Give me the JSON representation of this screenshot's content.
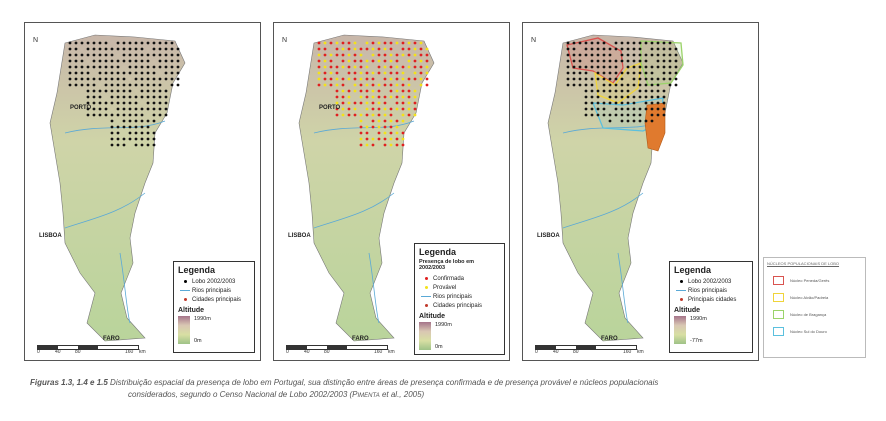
{
  "maps": [
    {
      "north": "N",
      "cities": {
        "porto": "PORTO",
        "lisboa": "LISBOA",
        "faro": "FARO"
      },
      "legend": {
        "title": "Legenda",
        "subtitle": "",
        "items": [
          {
            "label": "Lobo 2002/2003",
            "color": "#000000",
            "kind": "dot"
          },
          {
            "label": "Rios principais",
            "color": "#5aa9d6",
            "kind": "line"
          },
          {
            "label": "Cidades principais",
            "color": "#c0392b",
            "kind": "dot"
          }
        ],
        "altitude_title": "Altitude",
        "alt_max": "1990m",
        "alt_min": "0m"
      },
      "scale": {
        "t0": "0",
        "t1": "40",
        "t2": "80",
        "t3": "160",
        "unit": "km"
      }
    },
    {
      "north": "N",
      "cities": {
        "porto": "PORTO",
        "lisboa": "LISBOA",
        "faro": "FARO"
      },
      "legend": {
        "title": "Legenda",
        "subtitle": "Presença de lobo em 2002/2003",
        "items": [
          {
            "label": "Confirmada",
            "color": "#e02020",
            "kind": "dot"
          },
          {
            "label": "Provável",
            "color": "#f3e21a",
            "kind": "dot"
          },
          {
            "label": "Rios principais",
            "color": "#5aa9d6",
            "kind": "line"
          },
          {
            "label": "Cidades principais",
            "color": "#c0392b",
            "kind": "dot"
          }
        ],
        "altitude_title": "Altitude",
        "alt_max": "1990m",
        "alt_min": "0m"
      },
      "scale": {
        "t0": "0",
        "t1": "40",
        "t2": "80",
        "t3": "160",
        "unit": "km"
      }
    },
    {
      "north": "N",
      "cities": {
        "porto": "",
        "lisboa": "LISBOA",
        "faro": "FARO"
      },
      "legend": {
        "title": "Legenda",
        "subtitle": "",
        "items": [
          {
            "label": "Lobo 2002/2003",
            "color": "#000000",
            "kind": "dot"
          },
          {
            "label": "Rios principais",
            "color": "#5aa9d6",
            "kind": "line"
          },
          {
            "label": "Principais cidades",
            "color": "#c0392b",
            "kind": "dot"
          }
        ],
        "altitude_title": "Altitude",
        "alt_max": "1990m",
        "alt_min": "-77m"
      },
      "scale": {
        "t0": "0",
        "t1": "40",
        "t2": "80",
        "t3": "160",
        "unit": "km"
      }
    }
  ],
  "nucleos": {
    "title": "NÚCLEOS POPULACIONAIS DE LOBO",
    "items": [
      {
        "label": "Núcleo Peneda/Gerês",
        "color": "#d9534f"
      },
      {
        "label": "Núcleo Alvão/Padrela",
        "color": "#f0d43a"
      },
      {
        "label": "Núcleo de Bragança",
        "color": "#9bd36a"
      },
      {
        "label": "Núcleo Sul do Douro",
        "color": "#5bc0de"
      }
    ]
  },
  "caption": {
    "figs": "Figuras 1.3, 1.4 e 1.5",
    "line1": " Distribuição espacial da presença de lobo em Portugal, sua distinção entre áreas de presença confirmada e de presença provável e núcleos populacionais",
    "line2": "considerados, segundo o Censo Nacional de Lobo 2002/2003 (",
    "author": "Pimenta",
    "line2b": " et al., 2005)"
  }
}
